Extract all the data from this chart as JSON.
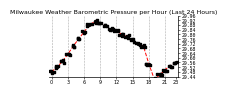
{
  "title": "Milwaukee Weather Barometric Pressure per Hour (Last 24 Hours)",
  "background_color": "#ffffff",
  "plot_bg_color": "#ffffff",
  "grid_color": "#aaaaaa",
  "line_color": "#ff0000",
  "dot_color": "#000000",
  "hours": [
    0,
    1,
    2,
    3,
    4,
    5,
    6,
    7,
    8,
    9,
    10,
    11,
    12,
    13,
    14,
    15,
    16,
    17,
    18,
    19,
    20,
    21,
    22,
    23
  ],
  "pressure": [
    29.48,
    29.52,
    29.57,
    29.63,
    29.7,
    29.76,
    29.82,
    29.88,
    29.91,
    29.9,
    29.87,
    29.84,
    29.83,
    29.8,
    29.78,
    29.75,
    29.72,
    29.7,
    29.55,
    29.42,
    29.45,
    29.5,
    29.53,
    29.56
  ],
  "ylim_min": 29.44,
  "ylim_max": 29.96,
  "ytick_min": 29.44,
  "ytick_max": 29.96,
  "ytick_step": 0.04,
  "grid_x": [
    0,
    3,
    6,
    9,
    12,
    15,
    18,
    21
  ],
  "xtick_positions": [
    0,
    3,
    6,
    9,
    12,
    15,
    18,
    21,
    23
  ],
  "xtick_labels": [
    "0",
    "3",
    "6",
    "9",
    "12",
    "15",
    "18",
    "21",
    "23"
  ],
  "title_fontsize": 4.5,
  "tick_fontsize": 3.5,
  "linewidth": 0.7,
  "markersize": 2.0
}
